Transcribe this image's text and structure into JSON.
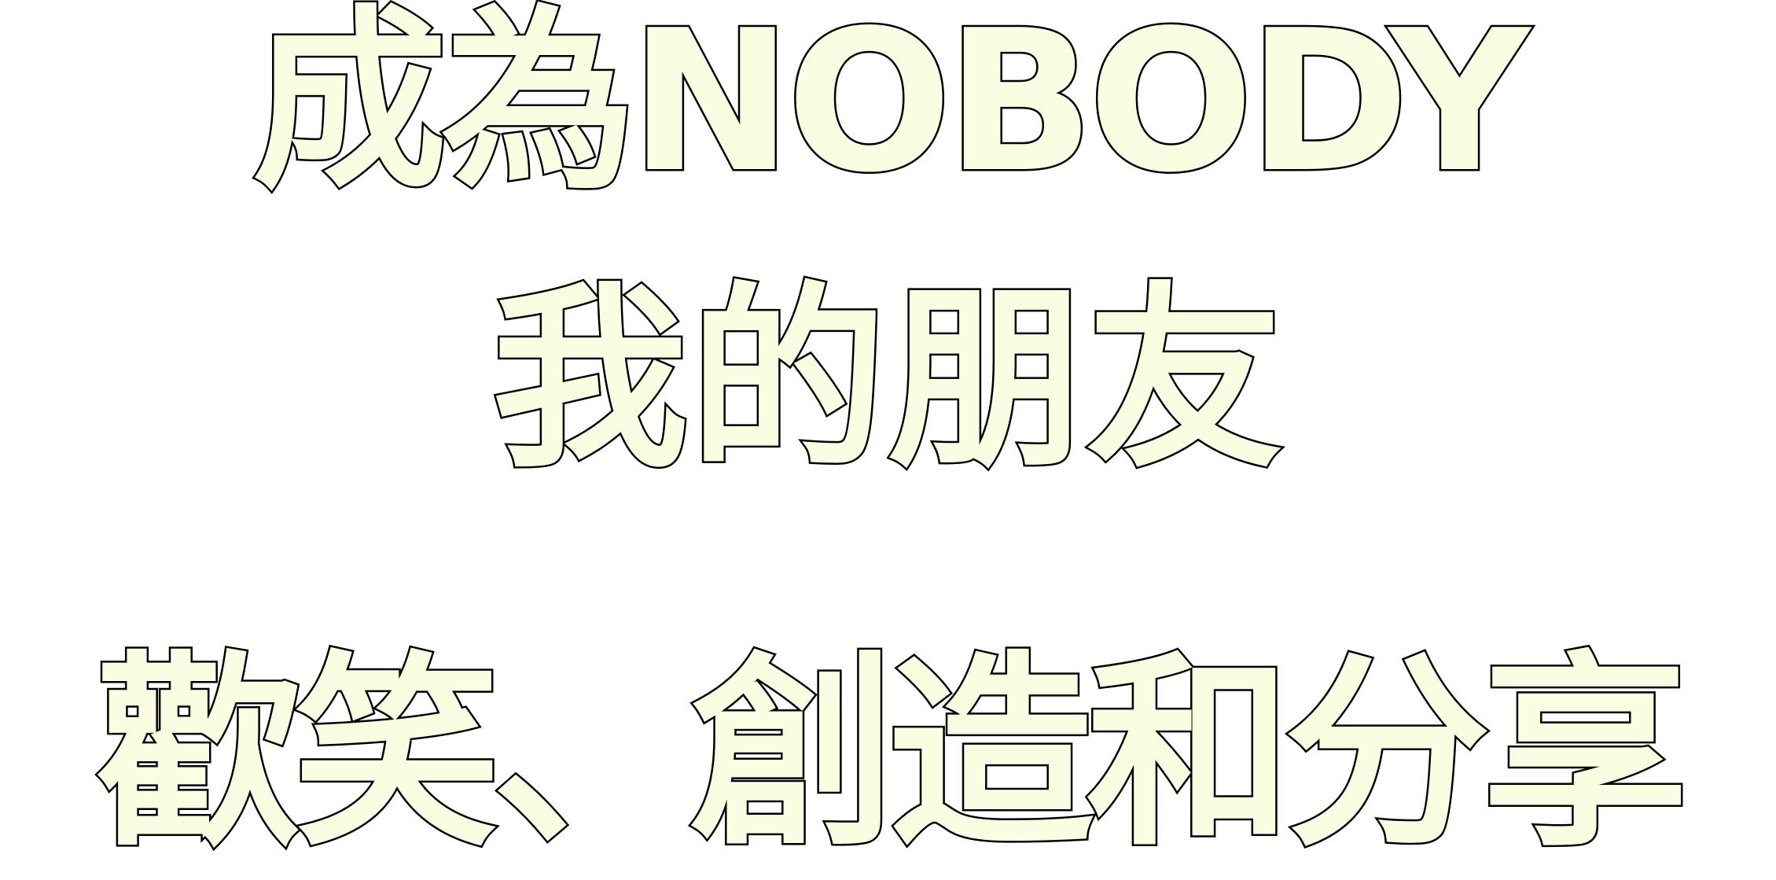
{
  "lines": [
    "成為NOBODY",
    "我的朋友",
    "歡笑、創造和分享"
  ],
  "style": {
    "text_fill_color": "#fbfde3",
    "text_outline_color": "#000000",
    "background_color": "#ffffff"
  }
}
